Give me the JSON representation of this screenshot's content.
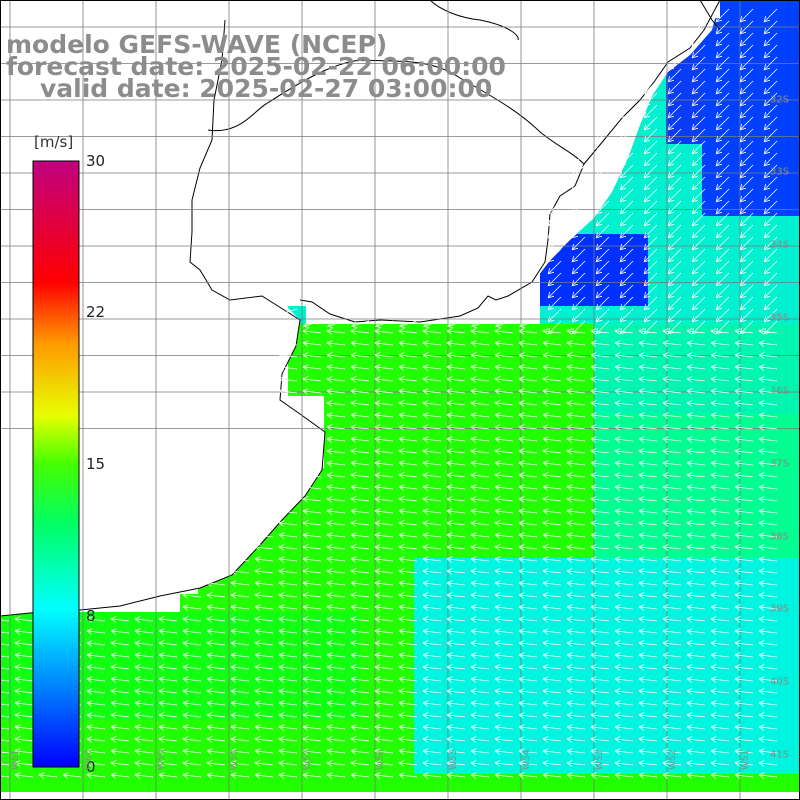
{
  "title": {
    "model": "modelo GEFS-WAVE (NCEP)",
    "forecast": "forecast date: 2025-02-22 06:00:00",
    "valid": "valid date: 2025-02-27 03:00:00"
  },
  "colorbar": {
    "units": "[m/s]",
    "min": 0,
    "max": 30,
    "ticks": [
      "30",
      "22",
      "15",
      "8",
      "0"
    ],
    "colors": [
      "#0000ff",
      "#00e5ff",
      "#00ff60",
      "#44ff00",
      "#ffff00",
      "#ff8800",
      "#ff0000",
      "#cc0077"
    ]
  },
  "map": {
    "variable": "wind speed and direction",
    "land_color": "#ffffff",
    "coastline_color": "#000000",
    "grid_color": "#7a7a7a",
    "prevailing_flow": "from east to west",
    "lat_labels": [
      "32S",
      "33S",
      "34S",
      "35S",
      "36S",
      "37S",
      "38S",
      "39S",
      "40S",
      "41S"
    ],
    "lon_labels": [
      "W61",
      "W60",
      "W59",
      "W58",
      "W57",
      "W56",
      "W55",
      "W54",
      "W53",
      "W52",
      "W51"
    ]
  }
}
